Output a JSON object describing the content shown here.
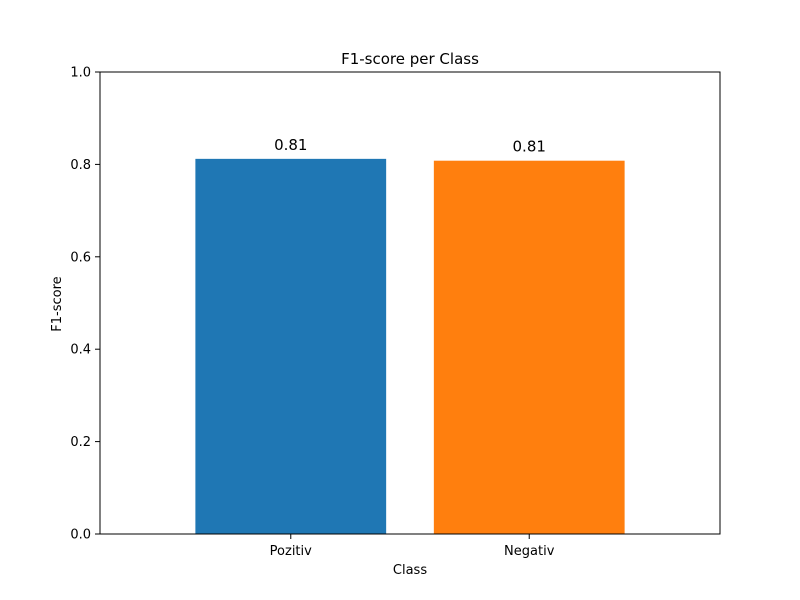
{
  "chart_data": {
    "type": "bar",
    "title": "F1-score per Class",
    "xlabel": "Class",
    "ylabel": "F1-score",
    "categories": [
      "Pozitiv",
      "Negativ"
    ],
    "values": [
      0.812,
      0.808
    ],
    "data_labels": [
      "0.81",
      "0.81"
    ],
    "colors": [
      "#1f77b4",
      "#ff7f0e"
    ],
    "ylim": [
      0,
      1.0
    ],
    "yticks": [
      "0.0",
      "0.2",
      "0.4",
      "0.6",
      "0.8",
      "1.0"
    ],
    "grid": false,
    "legend": "none"
  }
}
